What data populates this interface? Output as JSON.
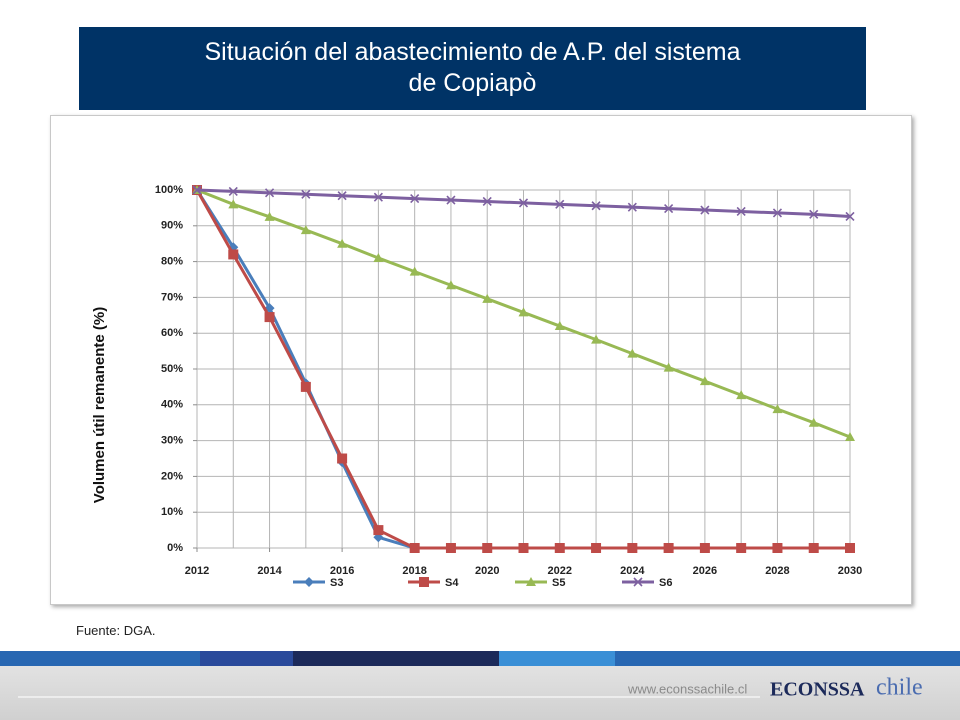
{
  "slide": {
    "title_line1": "Situación del abastecimiento de A.P. del sistema",
    "title_line2": "de Copiapò"
  },
  "chart_data": {
    "type": "line",
    "ylabel": "Volumen útil remanente (%)",
    "x": [
      2012,
      2013,
      2014,
      2015,
      2016,
      2017,
      2018,
      2019,
      2020,
      2021,
      2022,
      2023,
      2024,
      2025,
      2026,
      2027,
      2028,
      2029,
      2030
    ],
    "xlim": [
      2012,
      2030
    ],
    "xticks": [
      2012,
      2014,
      2016,
      2018,
      2020,
      2022,
      2024,
      2026,
      2028,
      2030
    ],
    "ylim": [
      0,
      100
    ],
    "yticks": [
      {
        "value": 0,
        "label": "0%"
      },
      {
        "value": 10,
        "label": "10%"
      },
      {
        "value": 20,
        "label": "20%"
      },
      {
        "value": 30,
        "label": "30%"
      },
      {
        "value": 40,
        "label": "40%"
      },
      {
        "value": 50,
        "label": "50%"
      },
      {
        "value": 60,
        "label": "60%"
      },
      {
        "value": 70,
        "label": "70%"
      },
      {
        "value": 80,
        "label": "80%"
      },
      {
        "value": 90,
        "label": "90%"
      },
      {
        "value": 100,
        "label": "100%"
      }
    ],
    "grid": true,
    "legend": "bottom",
    "series": [
      {
        "name": "S3",
        "color": "#4a7ebb",
        "marker": "diamond",
        "values": [
          100,
          84,
          67,
          46,
          24,
          3,
          0,
          0,
          0,
          0,
          0,
          0,
          0,
          0,
          0,
          0,
          0,
          0,
          0
        ]
      },
      {
        "name": "S4",
        "color": "#be4b48",
        "marker": "square",
        "values": [
          100,
          82,
          64.5,
          45,
          25,
          5,
          0,
          0,
          0,
          0,
          0,
          0,
          0,
          0,
          0,
          0,
          0,
          0,
          0
        ]
      },
      {
        "name": "S5",
        "color": "#98b954",
        "marker": "triangle",
        "values": [
          100,
          96,
          92.5,
          88.8,
          85,
          81,
          77.2,
          73.4,
          69.6,
          65.8,
          62,
          58.2,
          54.3,
          50.4,
          46.6,
          42.7,
          38.8,
          35,
          31
        ]
      },
      {
        "name": "S6",
        "color": "#7d60a0",
        "marker": "x",
        "values": [
          100,
          99.6,
          99.2,
          98.8,
          98.4,
          98,
          97.6,
          97.2,
          96.8,
          96.4,
          96,
          95.6,
          95.2,
          94.8,
          94.4,
          94,
          93.6,
          93.2,
          92.6
        ]
      }
    ]
  },
  "source": "Fuente: DGA.",
  "footer": {
    "url": "www.econssachile.cl",
    "logo_bold": "ECONSSA",
    "logo_light": "chile"
  }
}
